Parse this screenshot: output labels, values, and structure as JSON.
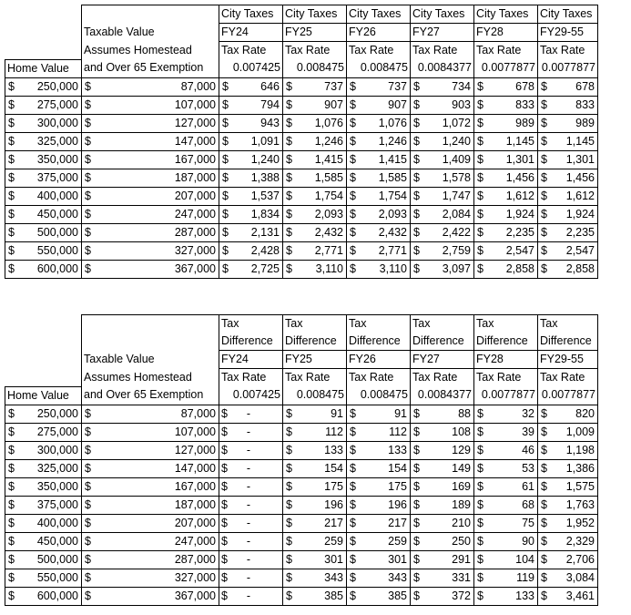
{
  "table1": {
    "header_rows": [
      [
        "",
        "",
        "City Taxes",
        "City Taxes",
        "City Taxes",
        "City Taxes",
        "City Taxes",
        "City Taxes"
      ],
      [
        "",
        "Taxable Value",
        "FY24",
        "FY25",
        "FY26",
        "FY27",
        "FY28",
        "FY29-55"
      ],
      [
        "",
        "Assumes Homestead",
        "Tax Rate",
        "Tax Rate",
        "Tax Rate",
        "Tax Rate",
        "Tax Rate",
        "Tax Rate"
      ],
      [
        "Home Value",
        "and Over 65 Exemption",
        "0.007425",
        "0.008475",
        "0.008475",
        "0.0084377",
        "0.0077877",
        "0.0077877"
      ]
    ],
    "rows": [
      [
        "250,000",
        "87,000",
        "646",
        "737",
        "737",
        "734",
        "678",
        "678"
      ],
      [
        "275,000",
        "107,000",
        "794",
        "907",
        "907",
        "903",
        "833",
        "833"
      ],
      [
        "300,000",
        "127,000",
        "943",
        "1,076",
        "1,076",
        "1,072",
        "989",
        "989"
      ],
      [
        "325,000",
        "147,000",
        "1,091",
        "1,246",
        "1,246",
        "1,240",
        "1,145",
        "1,145"
      ],
      [
        "350,000",
        "167,000",
        "1,240",
        "1,415",
        "1,415",
        "1,409",
        "1,301",
        "1,301"
      ],
      [
        "375,000",
        "187,000",
        "1,388",
        "1,585",
        "1,585",
        "1,578",
        "1,456",
        "1,456"
      ],
      [
        "400,000",
        "207,000",
        "1,537",
        "1,754",
        "1,754",
        "1,747",
        "1,612",
        "1,612"
      ],
      [
        "450,000",
        "247,000",
        "1,834",
        "2,093",
        "2,093",
        "2,084",
        "1,924",
        "1,924"
      ],
      [
        "500,000",
        "287,000",
        "2,131",
        "2,432",
        "2,432",
        "2,422",
        "2,235",
        "2,235"
      ],
      [
        "550,000",
        "327,000",
        "2,428",
        "2,771",
        "2,771",
        "2,759",
        "2,547",
        "2,547"
      ],
      [
        "600,000",
        "367,000",
        "2,725",
        "3,110",
        "3,110",
        "3,097",
        "2,858",
        "2,858"
      ]
    ]
  },
  "table2": {
    "header_rows": [
      [
        "",
        "",
        "Tax",
        "Tax",
        "Tax",
        "Tax",
        "Tax",
        "Tax"
      ],
      [
        "",
        "",
        "Difference",
        "Difference",
        "Difference",
        "Difference",
        "Difference",
        "Difference"
      ],
      [
        "",
        "Taxable Value",
        "FY24",
        "FY25",
        "FY26",
        "FY27",
        "FY28",
        "FY29-55"
      ],
      [
        "",
        "Assumes Homestead",
        "Tax Rate",
        "Tax Rate",
        "Tax Rate",
        "Tax Rate",
        "Tax Rate",
        "Tax Rate"
      ],
      [
        "Home Value",
        "and Over 65 Exemption",
        "0.007425",
        "0.008475",
        "0.008475",
        "0.0084377",
        "0.0077877",
        "0.0077877"
      ]
    ],
    "rows": [
      [
        "250,000",
        "87,000",
        "-",
        "91",
        "91",
        "88",
        "32",
        "820"
      ],
      [
        "275,000",
        "107,000",
        "-",
        "112",
        "112",
        "108",
        "39",
        "1,009"
      ],
      [
        "300,000",
        "127,000",
        "-",
        "133",
        "133",
        "129",
        "46",
        "1,198"
      ],
      [
        "325,000",
        "147,000",
        "-",
        "154",
        "154",
        "149",
        "53",
        "1,386"
      ],
      [
        "350,000",
        "167,000",
        "-",
        "175",
        "175",
        "169",
        "61",
        "1,575"
      ],
      [
        "375,000",
        "187,000",
        "-",
        "196",
        "196",
        "189",
        "68",
        "1,763"
      ],
      [
        "400,000",
        "207,000",
        "-",
        "217",
        "217",
        "210",
        "75",
        "1,952"
      ],
      [
        "450,000",
        "247,000",
        "-",
        "259",
        "259",
        "250",
        "90",
        "2,329"
      ],
      [
        "500,000",
        "287,000",
        "-",
        "301",
        "301",
        "291",
        "104",
        "2,706"
      ],
      [
        "550,000",
        "327,000",
        "-",
        "343",
        "343",
        "331",
        "119",
        "3,084"
      ],
      [
        "600,000",
        "367,000",
        "-",
        "385",
        "385",
        "372",
        "133",
        "3,461"
      ]
    ]
  },
  "currency_symbol": "$"
}
